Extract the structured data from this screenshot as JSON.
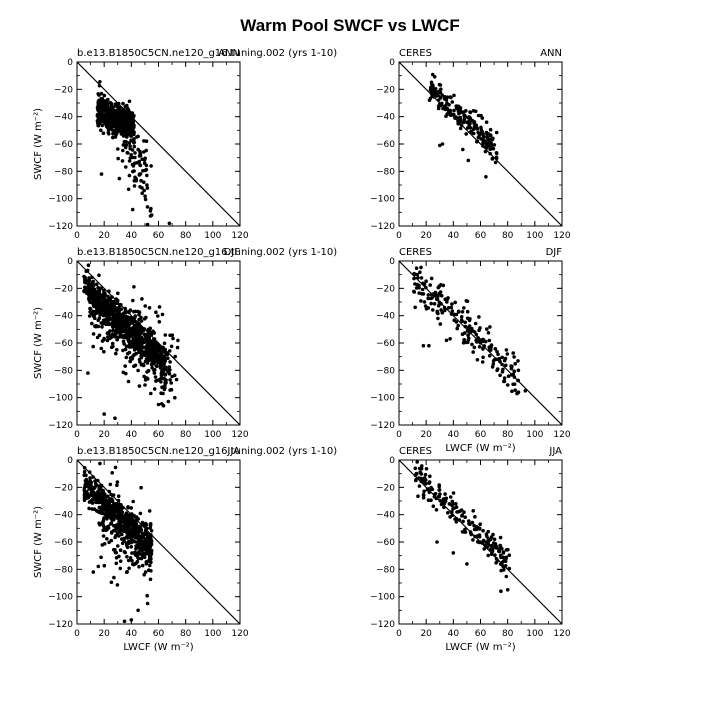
{
  "figure": {
    "title": "Warm Pool SWCF vs LWCF"
  },
  "chart_data": [
    {
      "type": "scatter",
      "left_label": "b.e13.B1850C5CN.ne120_g16.tuning.002 (yrs 1-10)",
      "right_label": "ANN",
      "xlabel": "",
      "ylabel": "SWCF (W m⁻²)",
      "show_xlabel": false,
      "show_ylabel": true,
      "xlim": [
        0,
        120
      ],
      "ylim": [
        -120,
        0
      ],
      "xticks": [
        0,
        20,
        40,
        60,
        80,
        100,
        120
      ],
      "yticks": [
        0,
        -20,
        -40,
        -60,
        -80,
        -100,
        -120
      ],
      "seed": 11,
      "clusters": [
        {
          "n": 520,
          "x": [
            15,
            42
          ],
          "y0": -35,
          "slope": -0.45,
          "spread": 6
        },
        {
          "n": 70,
          "x": [
            30,
            52
          ],
          "y0": -55,
          "slope": -0.9,
          "spread": 14
        },
        {
          "n": 25,
          "x": [
            38,
            55
          ],
          "y0": -80,
          "slope": -0.6,
          "spread": 14
        }
      ],
      "points": [
        [
          18,
          -82
        ],
        [
          55,
          -112
        ],
        [
          68,
          -118
        ],
        [
          48,
          -96
        ],
        [
          41,
          -108
        ]
      ]
    },
    {
      "type": "scatter",
      "left_label": "CERES",
      "right_label": "ANN",
      "xlabel": "",
      "ylabel": "",
      "show_xlabel": false,
      "show_ylabel": false,
      "xlim": [
        0,
        120
      ],
      "ylim": [
        -120,
        0
      ],
      "xticks": [
        0,
        20,
        40,
        60,
        80,
        100,
        120
      ],
      "yticks": [
        0,
        -20,
        -40,
        -60,
        -80,
        -100,
        -120
      ],
      "seed": 23,
      "clusters": [
        {
          "n": 200,
          "x": [
            22,
            72
          ],
          "y0": -17,
          "slope": -0.92,
          "spread": 5
        }
      ],
      "points": [
        [
          32,
          -60
        ],
        [
          30,
          -61
        ],
        [
          47,
          -64
        ],
        [
          51,
          -72
        ],
        [
          64,
          -84
        ]
      ]
    },
    {
      "type": "scatter",
      "left_label": "b.e13.B1850C5CN.ne120_g16.tuning.002 (yrs 1-10)",
      "right_label": "DJF",
      "xlabel": "",
      "ylabel": "SWCF (W m⁻²)",
      "show_xlabel": false,
      "show_ylabel": true,
      "xlim": [
        0,
        120
      ],
      "ylim": [
        -120,
        0
      ],
      "xticks": [
        0,
        20,
        40,
        60,
        80,
        100,
        120
      ],
      "yticks": [
        0,
        -20,
        -40,
        -60,
        -80,
        -100,
        -120
      ],
      "seed": 37,
      "clusters": [
        {
          "n": 650,
          "x": [
            5,
            65
          ],
          "y0": -18,
          "slope": -0.95,
          "spread": 6
        },
        {
          "n": 260,
          "x": [
            8,
            70
          ],
          "y0": -33,
          "slope": -0.9,
          "spread": 11
        },
        {
          "n": 50,
          "x": [
            40,
            75
          ],
          "y0": -40,
          "slope": -0.85,
          "spread": 10
        }
      ],
      "points": [
        [
          20,
          -112
        ],
        [
          28,
          -115
        ],
        [
          8,
          -82
        ],
        [
          72,
          -100
        ],
        [
          60,
          -105
        ]
      ]
    },
    {
      "type": "scatter",
      "left_label": "CERES",
      "right_label": "DJF",
      "xlabel": "LWCF (W m⁻²)",
      "ylabel": "",
      "show_xlabel": true,
      "show_ylabel": false,
      "xlim": [
        0,
        120
      ],
      "ylim": [
        -120,
        0
      ],
      "xticks": [
        0,
        20,
        40,
        60,
        80,
        100,
        120
      ],
      "yticks": [
        0,
        -20,
        -40,
        -60,
        -80,
        -100,
        -120
      ],
      "seed": 41,
      "clusters": [
        {
          "n": 200,
          "x": [
            10,
            88
          ],
          "y0": -12,
          "slope": -0.95,
          "spread": 8
        }
      ],
      "points": [
        [
          18,
          -62
        ],
        [
          22,
          -62
        ],
        [
          88,
          -96
        ],
        [
          93,
          -95
        ],
        [
          35,
          -58
        ]
      ]
    },
    {
      "type": "scatter",
      "left_label": "b.e13.B1850C5CN.ne120_g16.tuning.002 (yrs 1-10)",
      "right_label": "JJA",
      "xlabel": "LWCF (W m⁻²)",
      "ylabel": "SWCF (W m⁻²)",
      "show_xlabel": true,
      "show_ylabel": true,
      "xlim": [
        0,
        120
      ],
      "ylim": [
        -120,
        0
      ],
      "xticks": [
        0,
        20,
        40,
        60,
        80,
        100,
        120
      ],
      "yticks": [
        0,
        -20,
        -40,
        -60,
        -80,
        -100,
        -120
      ],
      "seed": 53,
      "clusters": [
        {
          "n": 480,
          "x": [
            5,
            55
          ],
          "y0": -18,
          "slope": -0.9,
          "spread": 6
        },
        {
          "n": 200,
          "x": [
            15,
            55
          ],
          "y0": -40,
          "slope": -0.75,
          "spread": 16
        }
      ],
      "points": [
        [
          35,
          -118
        ],
        [
          40,
          -117
        ],
        [
          12,
          -82
        ],
        [
          52,
          -105
        ],
        [
          45,
          -110
        ]
      ]
    },
    {
      "type": "scatter",
      "left_label": "CERES",
      "right_label": "JJA",
      "xlabel": "LWCF (W m⁻²)",
      "ylabel": "",
      "show_xlabel": true,
      "show_ylabel": false,
      "xlim": [
        0,
        120
      ],
      "ylim": [
        -120,
        0
      ],
      "xticks": [
        0,
        20,
        40,
        60,
        80,
        100,
        120
      ],
      "yticks": [
        0,
        -20,
        -40,
        -60,
        -80,
        -100,
        -120
      ],
      "seed": 67,
      "clusters": [
        {
          "n": 190,
          "x": [
            12,
            82
          ],
          "y0": -10,
          "slope": -0.95,
          "spread": 5
        }
      ],
      "points": [
        [
          28,
          -60
        ],
        [
          40,
          -68
        ],
        [
          50,
          -76
        ],
        [
          80,
          -95
        ],
        [
          75,
          -96
        ]
      ]
    }
  ]
}
